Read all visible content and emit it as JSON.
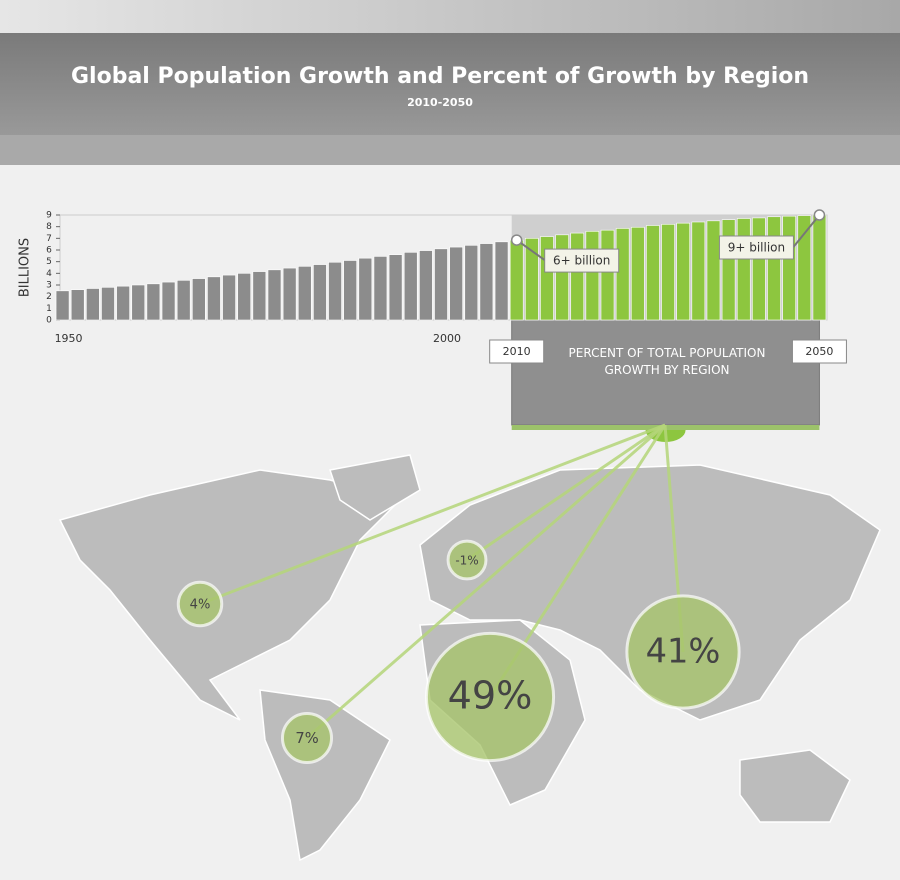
{
  "header": {
    "title": "Global Population Growth and Percent of Growth by Region",
    "subtitle": "2010-2050"
  },
  "chart_data": [
    {
      "type": "bar",
      "y_label": "BILLIONS",
      "x": [
        1950,
        1952,
        1954,
        1956,
        1958,
        1960,
        1962,
        1964,
        1966,
        1968,
        1970,
        1972,
        1974,
        1976,
        1978,
        1980,
        1982,
        1984,
        1986,
        1988,
        1990,
        1992,
        1994,
        1996,
        1998,
        2000,
        2002,
        2004,
        2006,
        2008,
        2010,
        2012,
        2014,
        2016,
        2018,
        2020,
        2022,
        2024,
        2026,
        2028,
        2030,
        2032,
        2034,
        2036,
        2038,
        2040,
        2042,
        2044,
        2046,
        2048,
        2050
      ],
      "series": [
        {
          "color": "#8c8c8c",
          "values": [
            2.5,
            2.6,
            2.7,
            2.8,
            2.9,
            3.0,
            3.1,
            3.25,
            3.4,
            3.55,
            3.7,
            3.85,
            4.0,
            4.15,
            4.3,
            4.45,
            4.6,
            4.75,
            4.95,
            5.1,
            5.3,
            5.45,
            5.6,
            5.8,
            5.95,
            6.1,
            6.25,
            6.4,
            6.55,
            6.7,
            null,
            null,
            null,
            null,
            null,
            null,
            null,
            null,
            null,
            null,
            null,
            null,
            null,
            null,
            null,
            null,
            null,
            null,
            null,
            null,
            null
          ]
        },
        {
          "color": "#8dc63f",
          "values": [
            null,
            null,
            null,
            null,
            null,
            null,
            null,
            null,
            null,
            null,
            null,
            null,
            null,
            null,
            null,
            null,
            null,
            null,
            null,
            null,
            null,
            null,
            null,
            null,
            null,
            null,
            null,
            null,
            null,
            null,
            6.85,
            7.0,
            7.15,
            7.3,
            7.45,
            7.6,
            7.7,
            7.85,
            7.95,
            8.1,
            8.2,
            8.3,
            8.4,
            8.5,
            8.6,
            8.7,
            8.75,
            8.85,
            8.9,
            8.95,
            9.0
          ]
        }
      ],
      "xlim": [
        1949,
        2051
      ],
      "ylim": [
        0,
        9
      ],
      "yticks": [
        0,
        1,
        2,
        3,
        4,
        5,
        6,
        7,
        8,
        9
      ],
      "xticks": [
        1950,
        2000
      ],
      "period": {
        "start": 2010,
        "end": 2050,
        "label": "PERCENT OF TOTAL POPULATION GROWTH BY REGION"
      },
      "annotations": [
        {
          "text": "6+ billion",
          "x": 2010
        },
        {
          "text": "9+ billion",
          "x": 2050
        }
      ]
    },
    {
      "type": "bubble",
      "values": [
        4,
        -1,
        7,
        49,
        41
      ],
      "value_labels": [
        "4%",
        "-1%",
        "7%",
        "49%",
        "41%"
      ],
      "color": "#a6c46a"
    }
  ]
}
